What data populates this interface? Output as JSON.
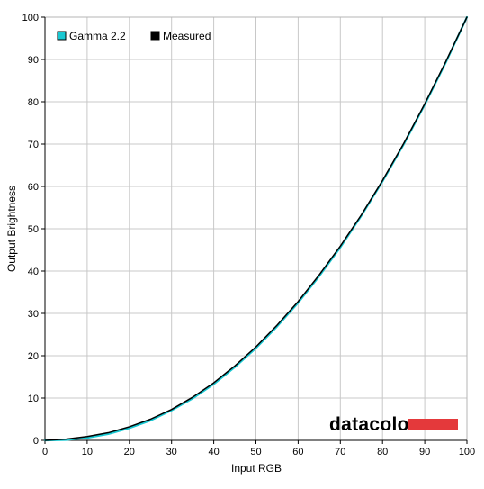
{
  "chart_data": {
    "type": "line",
    "xlabel": "Input RGB",
    "ylabel": "Output Brightness",
    "xlim": [
      0,
      100
    ],
    "ylim": [
      0,
      100
    ],
    "x_ticks": [
      0,
      10,
      20,
      30,
      40,
      50,
      60,
      70,
      80,
      90,
      100
    ],
    "y_ticks": [
      0,
      10,
      20,
      30,
      40,
      50,
      60,
      70,
      80,
      90,
      100
    ],
    "grid": true,
    "legend_position": "top-left",
    "series": [
      {
        "name": "Gamma 2.2",
        "color": "#19c8d2",
        "x": [
          0,
          5,
          10,
          15,
          20,
          25,
          30,
          35,
          40,
          45,
          50,
          55,
          60,
          65,
          70,
          75,
          80,
          85,
          90,
          95,
          100
        ],
        "y": [
          0,
          0.1,
          0.6,
          1.5,
          2.9,
          4.7,
          7.1,
          9.9,
          13.3,
          17.3,
          21.8,
          26.9,
          32.5,
          38.8,
          45.6,
          53.1,
          61.2,
          69.9,
          79.3,
          89.3,
          100
        ]
      },
      {
        "name": "Measured",
        "color": "#000000",
        "x": [
          0,
          5,
          10,
          15,
          20,
          25,
          30,
          35,
          40,
          45,
          50,
          55,
          60,
          65,
          70,
          75,
          80,
          85,
          90,
          95,
          100
        ],
        "y": [
          0,
          0.3,
          0.9,
          1.8,
          3.2,
          5.0,
          7.3,
          10.2,
          13.6,
          17.6,
          22.1,
          27.2,
          32.8,
          39.1,
          45.9,
          53.3,
          61.4,
          70.1,
          79.5,
          89.5,
          100
        ]
      }
    ]
  },
  "watermark": {
    "text": "datacolor",
    "bar_color": "#e4393b"
  }
}
